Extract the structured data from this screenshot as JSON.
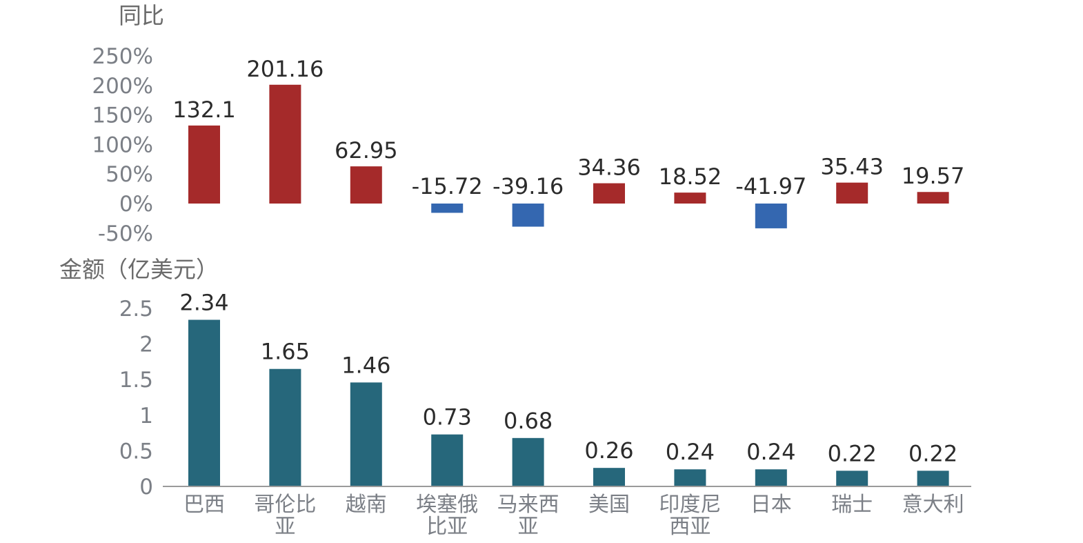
{
  "chart_data": [
    {
      "type": "bar",
      "ylabel": "同比",
      "categories": [
        "巴西",
        "哥伦比亚",
        "越南",
        "埃塞俄比亚",
        "马来西亚",
        "美国",
        "印度尼西亚",
        "日本",
        "瑞士",
        "意大利"
      ],
      "values": [
        132.1,
        201.16,
        62.95,
        -15.72,
        -39.16,
        34.36,
        18.52,
        -41.97,
        35.43,
        19.57
      ],
      "data_labels": [
        "132.1",
        "201.16",
        "62.95",
        "-15.72",
        "-39.16",
        "34.36",
        "18.52",
        "-41.97",
        "35.43",
        "19.57"
      ],
      "ylim": [
        -50,
        250
      ],
      "yticks": [
        250,
        200,
        150,
        100,
        50,
        0,
        -50
      ],
      "ytick_labels": [
        "250%",
        "200%",
        "150%",
        "100%",
        "50%",
        "0%",
        "-50%"
      ],
      "colors": {
        "positive": "#a52a2a",
        "negative": "#3467b0"
      },
      "grid": false
    },
    {
      "type": "bar",
      "ylabel": "金额（亿美元）",
      "categories": [
        "巴西",
        "哥伦比亚",
        "越南",
        "埃塞俄比亚",
        "马来西亚",
        "美国",
        "印度尼西亚",
        "日本",
        "瑞士",
        "意大利"
      ],
      "category_lines": [
        [
          "巴西"
        ],
        [
          "哥伦比",
          "亚"
        ],
        [
          "越南"
        ],
        [
          "埃塞俄",
          "比亚"
        ],
        [
          "马来西",
          "亚"
        ],
        [
          "美国"
        ],
        [
          "印度尼",
          "西亚"
        ],
        [
          "日本"
        ],
        [
          "瑞士"
        ],
        [
          "意大利"
        ]
      ],
      "values": [
        2.34,
        1.65,
        1.46,
        0.73,
        0.68,
        0.26,
        0.24,
        0.24,
        0.22,
        0.22
      ],
      "data_labels": [
        "2.34",
        "1.65",
        "1.46",
        "0.73",
        "0.68",
        "0.26",
        "0.24",
        "0.24",
        "0.22",
        "0.22"
      ],
      "ylim": [
        0,
        2.5
      ],
      "yticks": [
        2.5,
        2,
        1.5,
        1,
        0.5,
        0
      ],
      "ytick_labels": [
        "2.5",
        "2",
        "1.5",
        "1",
        "0.5",
        "0"
      ],
      "colors": {
        "bar": "#26677b",
        "axis": "#9a9a9a"
      },
      "grid": false
    }
  ]
}
